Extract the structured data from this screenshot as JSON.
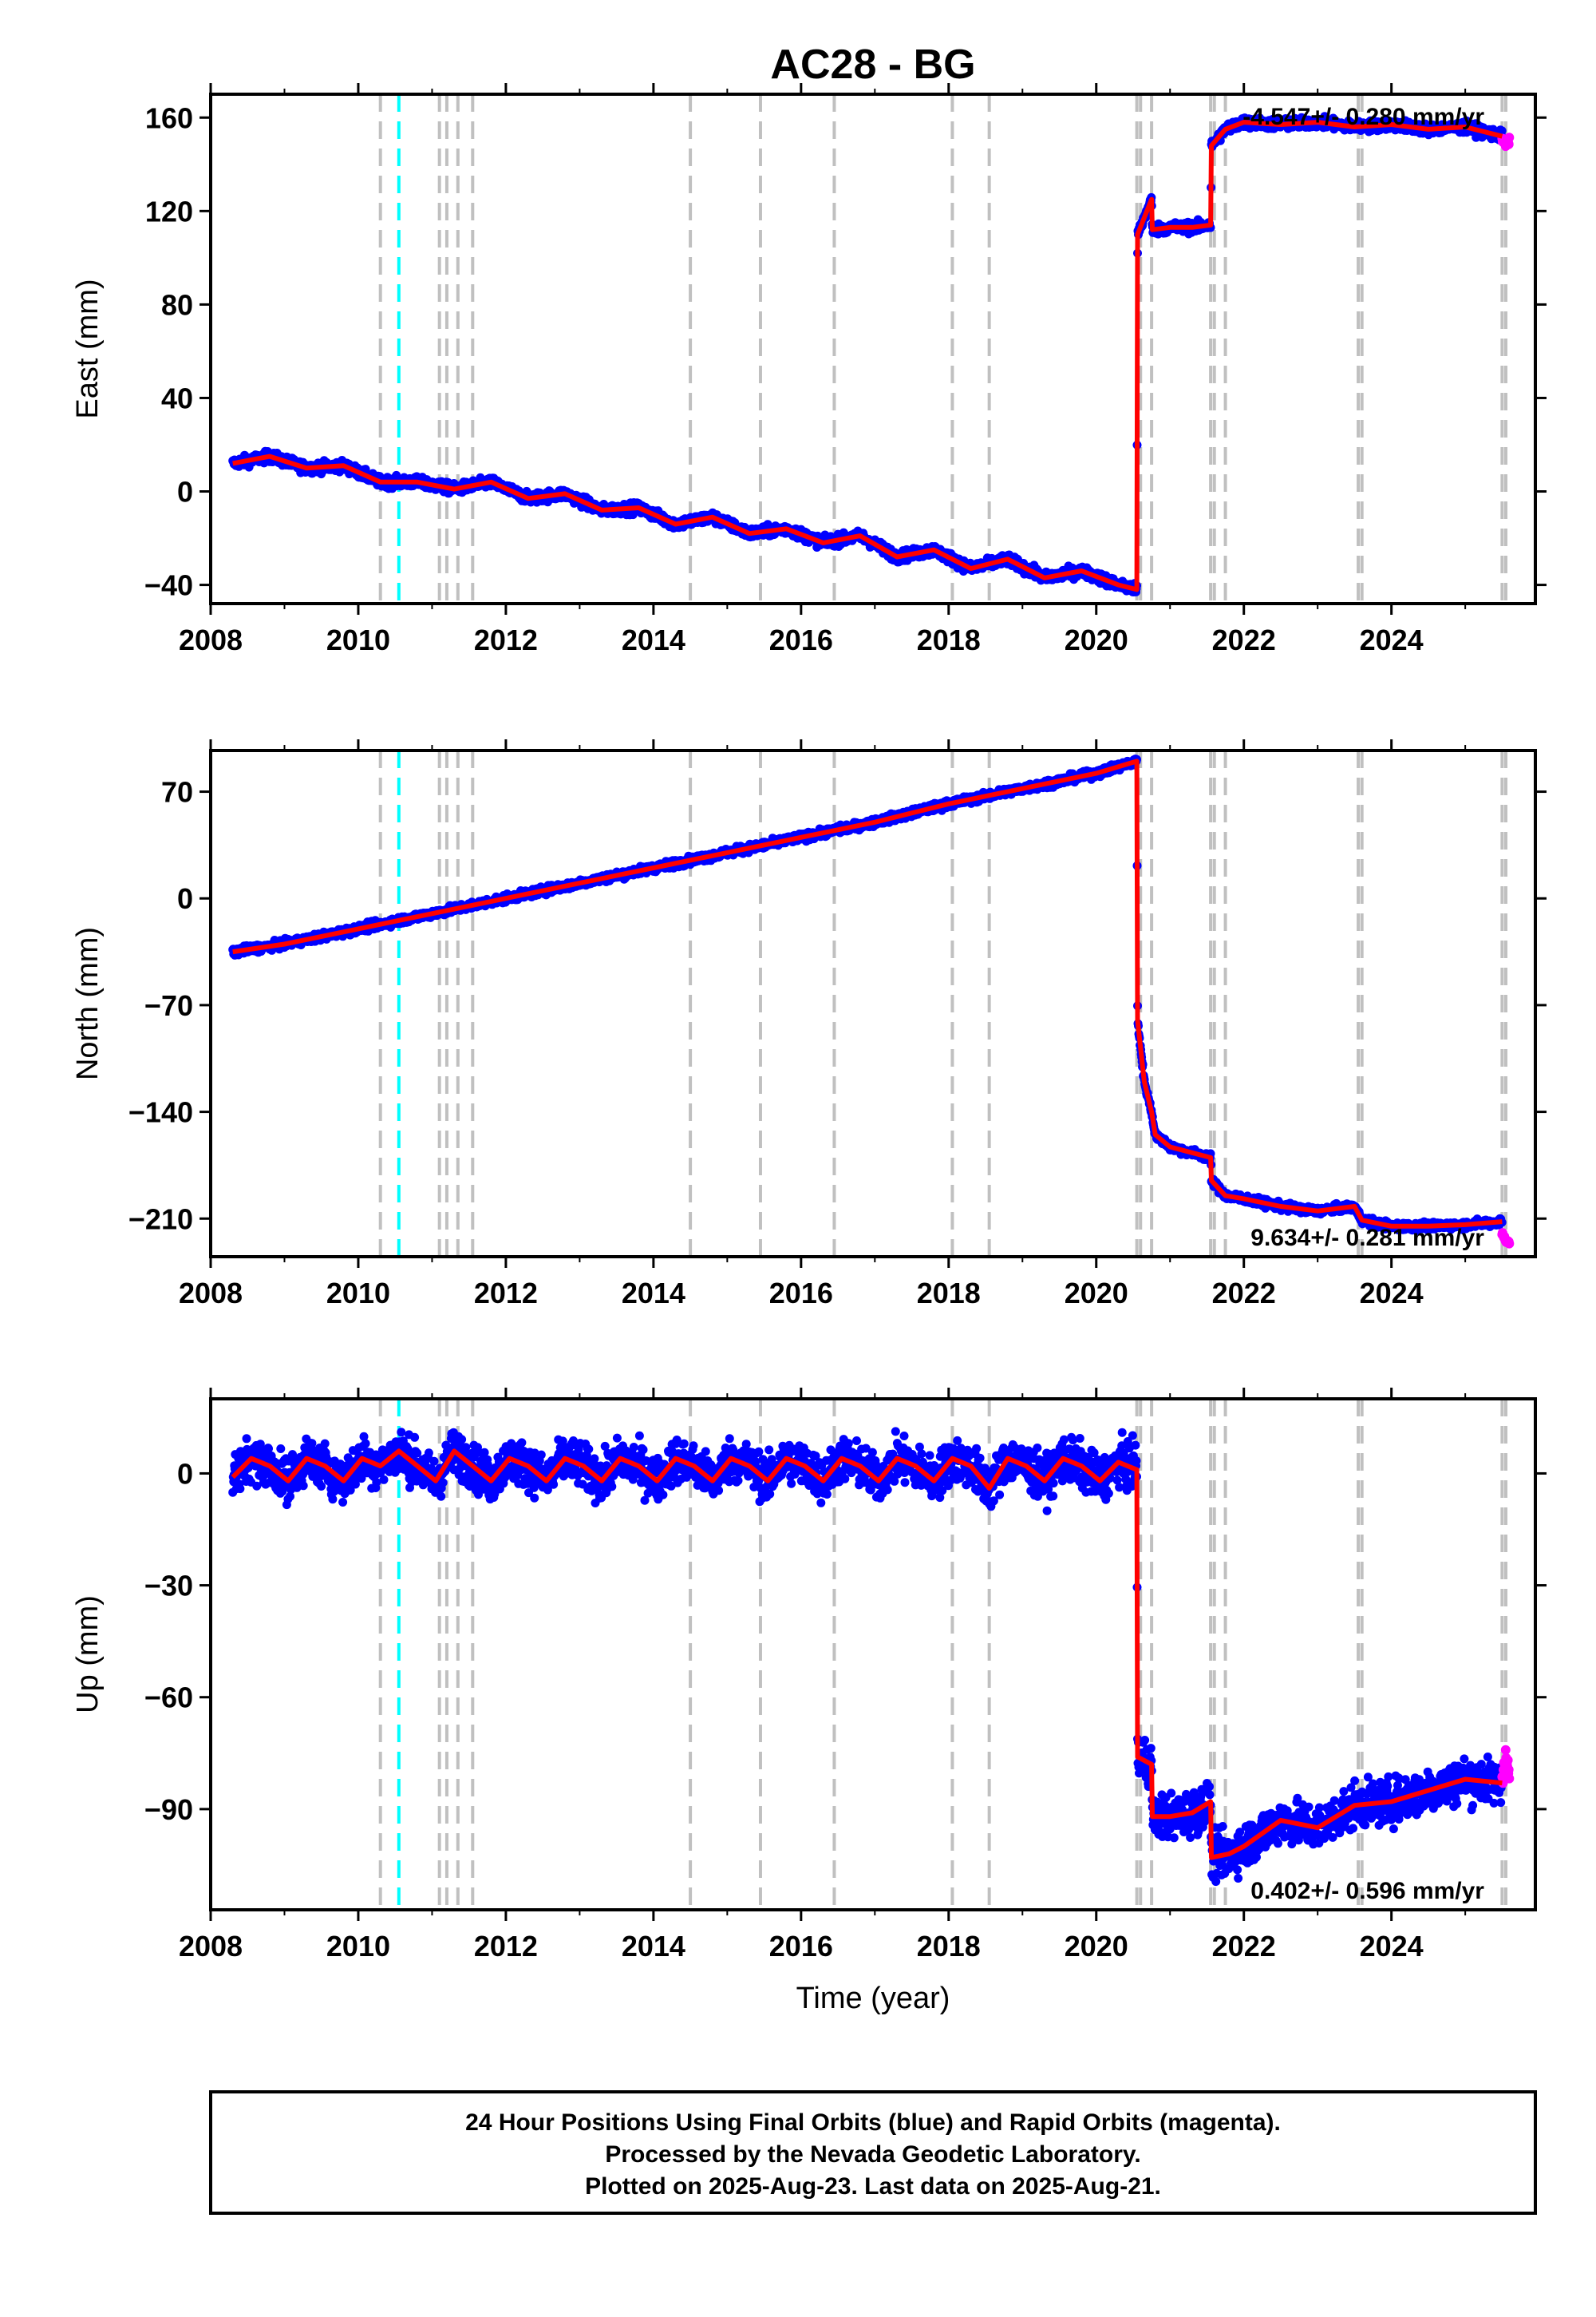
{
  "figure": {
    "title": "AC28 - BG",
    "xlabel": "Time (year)",
    "footer": [
      "24 Hour Positions Using Final Orbits (blue) and Rapid Orbits (magenta).",
      "Processed by the Nevada Geodetic Laboratory.",
      "Plotted on 2025-Aug-23. Last data on 2025-Aug-21."
    ],
    "colors": {
      "final_orbits": "#0000ff",
      "rapid_orbits": "#ff00ff",
      "model_fit": "#ff0000",
      "event_line": "#c0c0c0",
      "antenna_change_line": "#00ffff"
    },
    "x_ticks": [
      "2008",
      "2010",
      "2012",
      "2014",
      "2016",
      "2018",
      "2020",
      "2022",
      "2024"
    ],
    "xlim": [
      2008.0,
      2025.95
    ],
    "event_lines_years": [
      2010.3,
      2011.1,
      2011.2,
      2011.35,
      2011.55,
      2014.5,
      2015.45,
      2016.45,
      2018.05,
      2018.55,
      2020.55,
      2020.6,
      2020.75,
      2021.55,
      2021.6,
      2021.75,
      2023.55,
      2023.6,
      2025.5,
      2025.55
    ],
    "antenna_change_lines_years": [
      2010.55
    ]
  },
  "chart_data": [
    {
      "type": "scatter",
      "component": "east",
      "ylabel": "East (mm)",
      "ylim": [
        -48,
        170
      ],
      "yticks": [
        -40,
        0,
        40,
        80,
        120,
        160
      ],
      "y_tick_labels": [
        "−40",
        "0",
        "40",
        "80",
        "120",
        "160"
      ],
      "rate_label": "-4.547+/- 0.280 mm/yr",
      "rate_position": "top-right",
      "series": [
        {
          "name": "Final Orbits",
          "model_x": [
            2008.3,
            2008.8,
            2009.3,
            2009.8,
            2010.3,
            2010.8,
            2011.3,
            2011.8,
            2012.3,
            2012.8,
            2013.3,
            2013.8,
            2014.3,
            2014.8,
            2015.3,
            2015.8,
            2016.3,
            2016.8,
            2017.3,
            2017.8,
            2018.3,
            2018.8,
            2019.3,
            2019.8,
            2020.3,
            2020.55,
            2020.56,
            2020.75,
            2020.76,
            2021.0,
            2021.3,
            2021.55,
            2021.56,
            2021.75,
            2022.0,
            2022.5,
            2023.0,
            2023.5,
            2024.0,
            2024.5,
            2025.0,
            2025.5
          ],
          "model_y": [
            12,
            15,
            10,
            11,
            4,
            4,
            1,
            4,
            -3,
            -1,
            -8,
            -7,
            -14,
            -11,
            -18,
            -16,
            -22,
            -19,
            -28,
            -25,
            -33,
            -29,
            -37,
            -34,
            -40,
            -42,
            110,
            125,
            112,
            113,
            113,
            114,
            148,
            155,
            158,
            157,
            158,
            156,
            157,
            155,
            156,
            152
          ]
        },
        {
          "name": "Rapid Orbits",
          "model_x": [
            2025.5,
            2025.55,
            2025.6
          ],
          "model_y": [
            151,
            148,
            150
          ]
        }
      ]
    },
    {
      "type": "scatter",
      "component": "north",
      "ylabel": "North (mm)",
      "ylim": [
        -235,
        97
      ],
      "yticks": [
        -210,
        -140,
        -70,
        0,
        70
      ],
      "y_tick_labels": [
        "−210",
        "−140",
        "−70",
        "0",
        "70"
      ],
      "rate_label": "9.634+/- 0.281 mm/yr",
      "rate_position": "bottom-right",
      "series": [
        {
          "name": "Final Orbits",
          "model_x": [
            2008.3,
            2009.0,
            2010.0,
            2011.0,
            2012.0,
            2013.0,
            2014.0,
            2015.0,
            2016.0,
            2017.0,
            2018.0,
            2019.0,
            2020.0,
            2020.55,
            2020.56,
            2020.65,
            2020.75,
            2020.8,
            2021.0,
            2021.55,
            2021.56,
            2021.75,
            2022.0,
            2022.5,
            2023.0,
            2023.5,
            2023.6,
            2024.0,
            2024.5,
            2025.0,
            2025.5
          ],
          "model_y": [
            -35,
            -30,
            -20,
            -10,
            0,
            10,
            20,
            30,
            40,
            50,
            62,
            72,
            82,
            90,
            -80,
            -120,
            -140,
            -155,
            -163,
            -170,
            -185,
            -195,
            -197,
            -202,
            -205,
            -202,
            -211,
            -215,
            -215,
            -214,
            -212
          ]
        },
        {
          "name": "Rapid Orbits",
          "model_x": [
            2025.5,
            2025.55,
            2025.6
          ],
          "model_y": [
            -220,
            -224,
            -226
          ]
        }
      ]
    },
    {
      "type": "scatter",
      "component": "up",
      "ylabel": "Up (mm)",
      "ylim": [
        -117,
        20
      ],
      "yticks": [
        -90,
        -60,
        -30,
        0
      ],
      "y_tick_labels": [
        "−90",
        "−60",
        "−30",
        "0"
      ],
      "rate_label": "0.402+/- 0.596 mm/yr",
      "rate_position": "bottom-right",
      "series": [
        {
          "name": "Final Orbits",
          "model_x": [
            2008.3,
            2008.55,
            2008.8,
            2009.05,
            2009.3,
            2009.55,
            2009.8,
            2010.05,
            2010.3,
            2010.55,
            2010.8,
            2011.05,
            2011.3,
            2011.55,
            2011.8,
            2012.05,
            2012.3,
            2012.55,
            2012.8,
            2013.05,
            2013.3,
            2013.55,
            2013.8,
            2014.05,
            2014.3,
            2014.55,
            2014.8,
            2015.05,
            2015.3,
            2015.55,
            2015.8,
            2016.05,
            2016.3,
            2016.55,
            2016.8,
            2017.05,
            2017.3,
            2017.55,
            2017.8,
            2018.05,
            2018.3,
            2018.55,
            2018.8,
            2019.05,
            2019.3,
            2019.55,
            2019.8,
            2020.05,
            2020.3,
            2020.55,
            2020.56,
            2020.75,
            2020.76,
            2021.0,
            2021.3,
            2021.55,
            2021.56,
            2021.8,
            2022.0,
            2022.5,
            2023.0,
            2023.5,
            2024.0,
            2024.5,
            2025.0,
            2025.5
          ],
          "model_y": [
            -1,
            4,
            2,
            -2,
            4,
            2,
            -2,
            4,
            2,
            6,
            2,
            -2,
            6,
            2,
            -2,
            4,
            2,
            -2,
            4,
            2,
            -2,
            4,
            2,
            -2,
            4,
            2,
            -2,
            4,
            2,
            -2,
            4,
            2,
            -2,
            4,
            2,
            -2,
            4,
            2,
            -2,
            4,
            2,
            -4,
            4,
            2,
            -2,
            4,
            2,
            -2,
            3,
            1,
            -76,
            -78,
            -92,
            -92,
            -91,
            -88,
            -103,
            -102,
            -100,
            -93,
            -95,
            -89,
            -88,
            -85,
            -82,
            -83
          ]
        },
        {
          "name": "Rapid Orbits",
          "model_x": [
            2025.5,
            2025.55,
            2025.6
          ],
          "model_y": [
            -80,
            -76,
            -82
          ]
        }
      ]
    }
  ]
}
